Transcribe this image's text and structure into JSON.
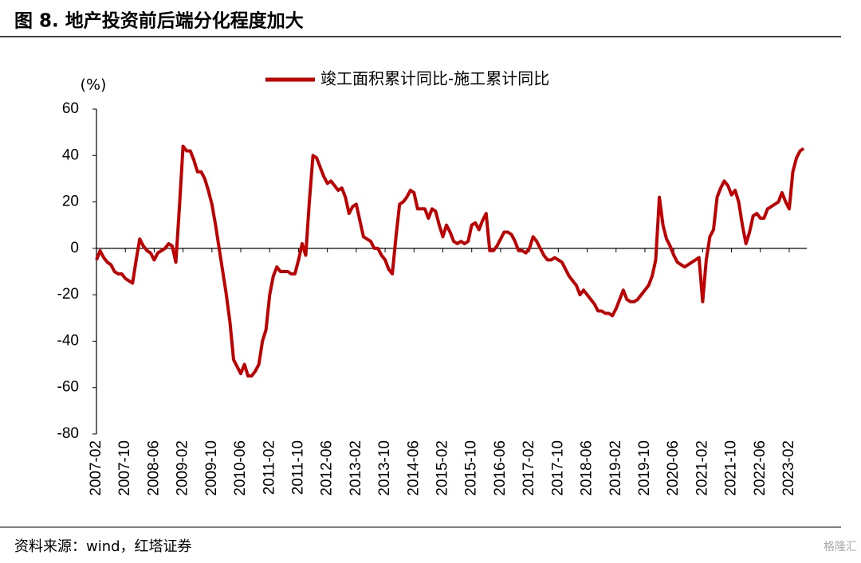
{
  "chart_data": {
    "type": "line",
    "title": "图 8. 地产投资前后端分化程度加大",
    "y_unit": "(%)",
    "source": "资料来源：wind，红塔证券",
    "watermark": "格隆汇",
    "categories": [
      "2007-02",
      null,
      null,
      null,
      null,
      null,
      null,
      null,
      "2007-10",
      null,
      null,
      null,
      null,
      null,
      null,
      null,
      "2008-06",
      null,
      null,
      null,
      null,
      null,
      null,
      null,
      "2009-02",
      null,
      null,
      null,
      null,
      null,
      null,
      null,
      "2009-10",
      null,
      null,
      null,
      null,
      null,
      null,
      null,
      "2010-06",
      null,
      null,
      null,
      null,
      null,
      null,
      null,
      "2011-02",
      null,
      null,
      null,
      null,
      null,
      null,
      null,
      "2011-10",
      null,
      null,
      null,
      null,
      null,
      null,
      null,
      "2012-06",
      null,
      null,
      null,
      null,
      null,
      null,
      null,
      "2013-02",
      null,
      null,
      null,
      null,
      null,
      null,
      null,
      "2013-10",
      null,
      null,
      null,
      null,
      null,
      null,
      null,
      "2014-06",
      null,
      null,
      null,
      null,
      null,
      null,
      null,
      "2015-02",
      null,
      null,
      null,
      null,
      null,
      null,
      null,
      "2015-10",
      null,
      null,
      null,
      null,
      null,
      null,
      null,
      "2016-06",
      null,
      null,
      null,
      null,
      null,
      null,
      null,
      "2017-02",
      null,
      null,
      null,
      null,
      null,
      null,
      null,
      "2017-10",
      null,
      null,
      null,
      null,
      null,
      null,
      null,
      "2018-06",
      null,
      null,
      null,
      null,
      null,
      null,
      null,
      "2019-02",
      null,
      null,
      null,
      null,
      null,
      null,
      null,
      "2019-10",
      null,
      null,
      null,
      null,
      null,
      null,
      null,
      "2020-06",
      null,
      null,
      null,
      null,
      null,
      null,
      null,
      "2021-02",
      null,
      null,
      null,
      null,
      null,
      null,
      null,
      "2021-10",
      null,
      null,
      null,
      null,
      null,
      null,
      null,
      "2022-06",
      null,
      null,
      null,
      null,
      null,
      null,
      null,
      "2023-02",
      null,
      null,
      null,
      null
    ],
    "series": [
      {
        "name": "竣工面积累计同比-施工累计同比",
        "color": "#c00000",
        "values": [
          -5,
          -1,
          -4,
          -6,
          -7,
          -10,
          -11,
          -11,
          -13,
          -14,
          -15,
          -5,
          4,
          1,
          -1,
          -2,
          -5,
          -2,
          -1,
          0,
          2,
          1,
          -6,
          18,
          44,
          42,
          42,
          38,
          33,
          33,
          30,
          25,
          19,
          10,
          0,
          -10,
          -20,
          -32,
          -48,
          -51,
          -54,
          -50,
          -55,
          -55,
          -53,
          -50,
          -40,
          -35,
          -20,
          -12,
          -8,
          -10,
          -10,
          -10,
          -11,
          -11,
          -5,
          2,
          -3,
          20,
          40,
          39,
          35,
          31,
          28,
          29,
          27,
          25,
          26,
          22,
          15,
          18,
          19,
          12,
          5,
          4,
          3,
          0,
          0,
          -3,
          -5,
          -9,
          -11,
          5,
          19,
          20,
          22,
          25,
          24,
          17,
          17,
          17,
          13,
          17,
          16,
          10,
          5,
          10,
          7,
          3,
          2,
          3,
          2,
          3,
          10,
          11,
          8,
          12,
          15,
          -1,
          -1,
          1,
          4,
          7,
          7,
          6,
          3,
          -1,
          -1,
          -2,
          0,
          5,
          3,
          0,
          -3,
          -5,
          -5,
          -4,
          -5,
          -6,
          -9,
          -12,
          -14,
          -16,
          -20,
          -18,
          -20,
          -22,
          -24,
          -27,
          -27,
          -28,
          -28,
          -29,
          -26,
          -22,
          -18,
          -22,
          -23,
          -23,
          -22,
          -20,
          -18,
          -16,
          -12,
          -5,
          22,
          10,
          4,
          1,
          -3,
          -6,
          -7,
          -8,
          -7,
          -6,
          -5,
          -4,
          -23,
          -5,
          5,
          8,
          22,
          26,
          29,
          27,
          23,
          25,
          20,
          10,
          2,
          7,
          14,
          15,
          13,
          13,
          17,
          18,
          19,
          20,
          24,
          20,
          17,
          33,
          39,
          42,
          43
        ]
      }
    ],
    "ylim": [
      -80,
      60
    ],
    "yticks": [
      -80,
      -60,
      -40,
      -20,
      0,
      20,
      40,
      60
    ],
    "grid": false,
    "legend": "top"
  }
}
